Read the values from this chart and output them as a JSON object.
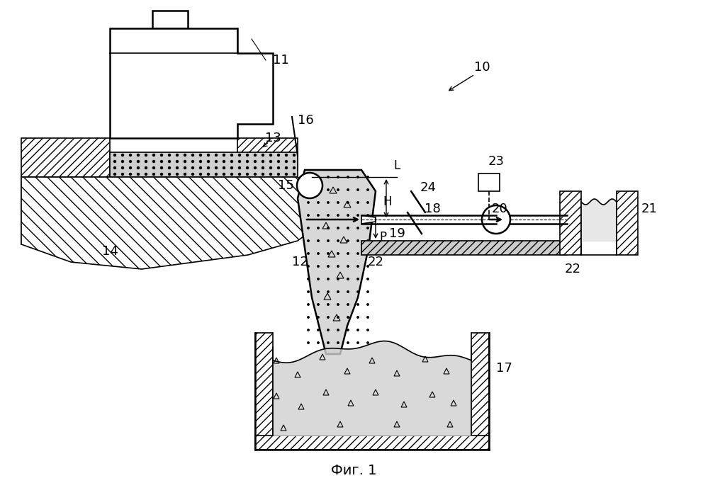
{
  "title": "Фиг. 1",
  "background_color": "#ffffff",
  "line_color": "#000000",
  "hatch_color": "#000000",
  "label_10": "10",
  "label_11": "11",
  "label_12": "12",
  "label_13": "13",
  "label_14": "14",
  "label_15": "15",
  "label_16": "16",
  "label_17": "17",
  "label_18": "18",
  "label_19": "19",
  "label_20": "20",
  "label_21": "21",
  "label_22_1": "22",
  "label_22_2": "22",
  "label_23": "23",
  "label_24": "24",
  "label_L": "L",
  "label_H": "H",
  "label_P": "P"
}
